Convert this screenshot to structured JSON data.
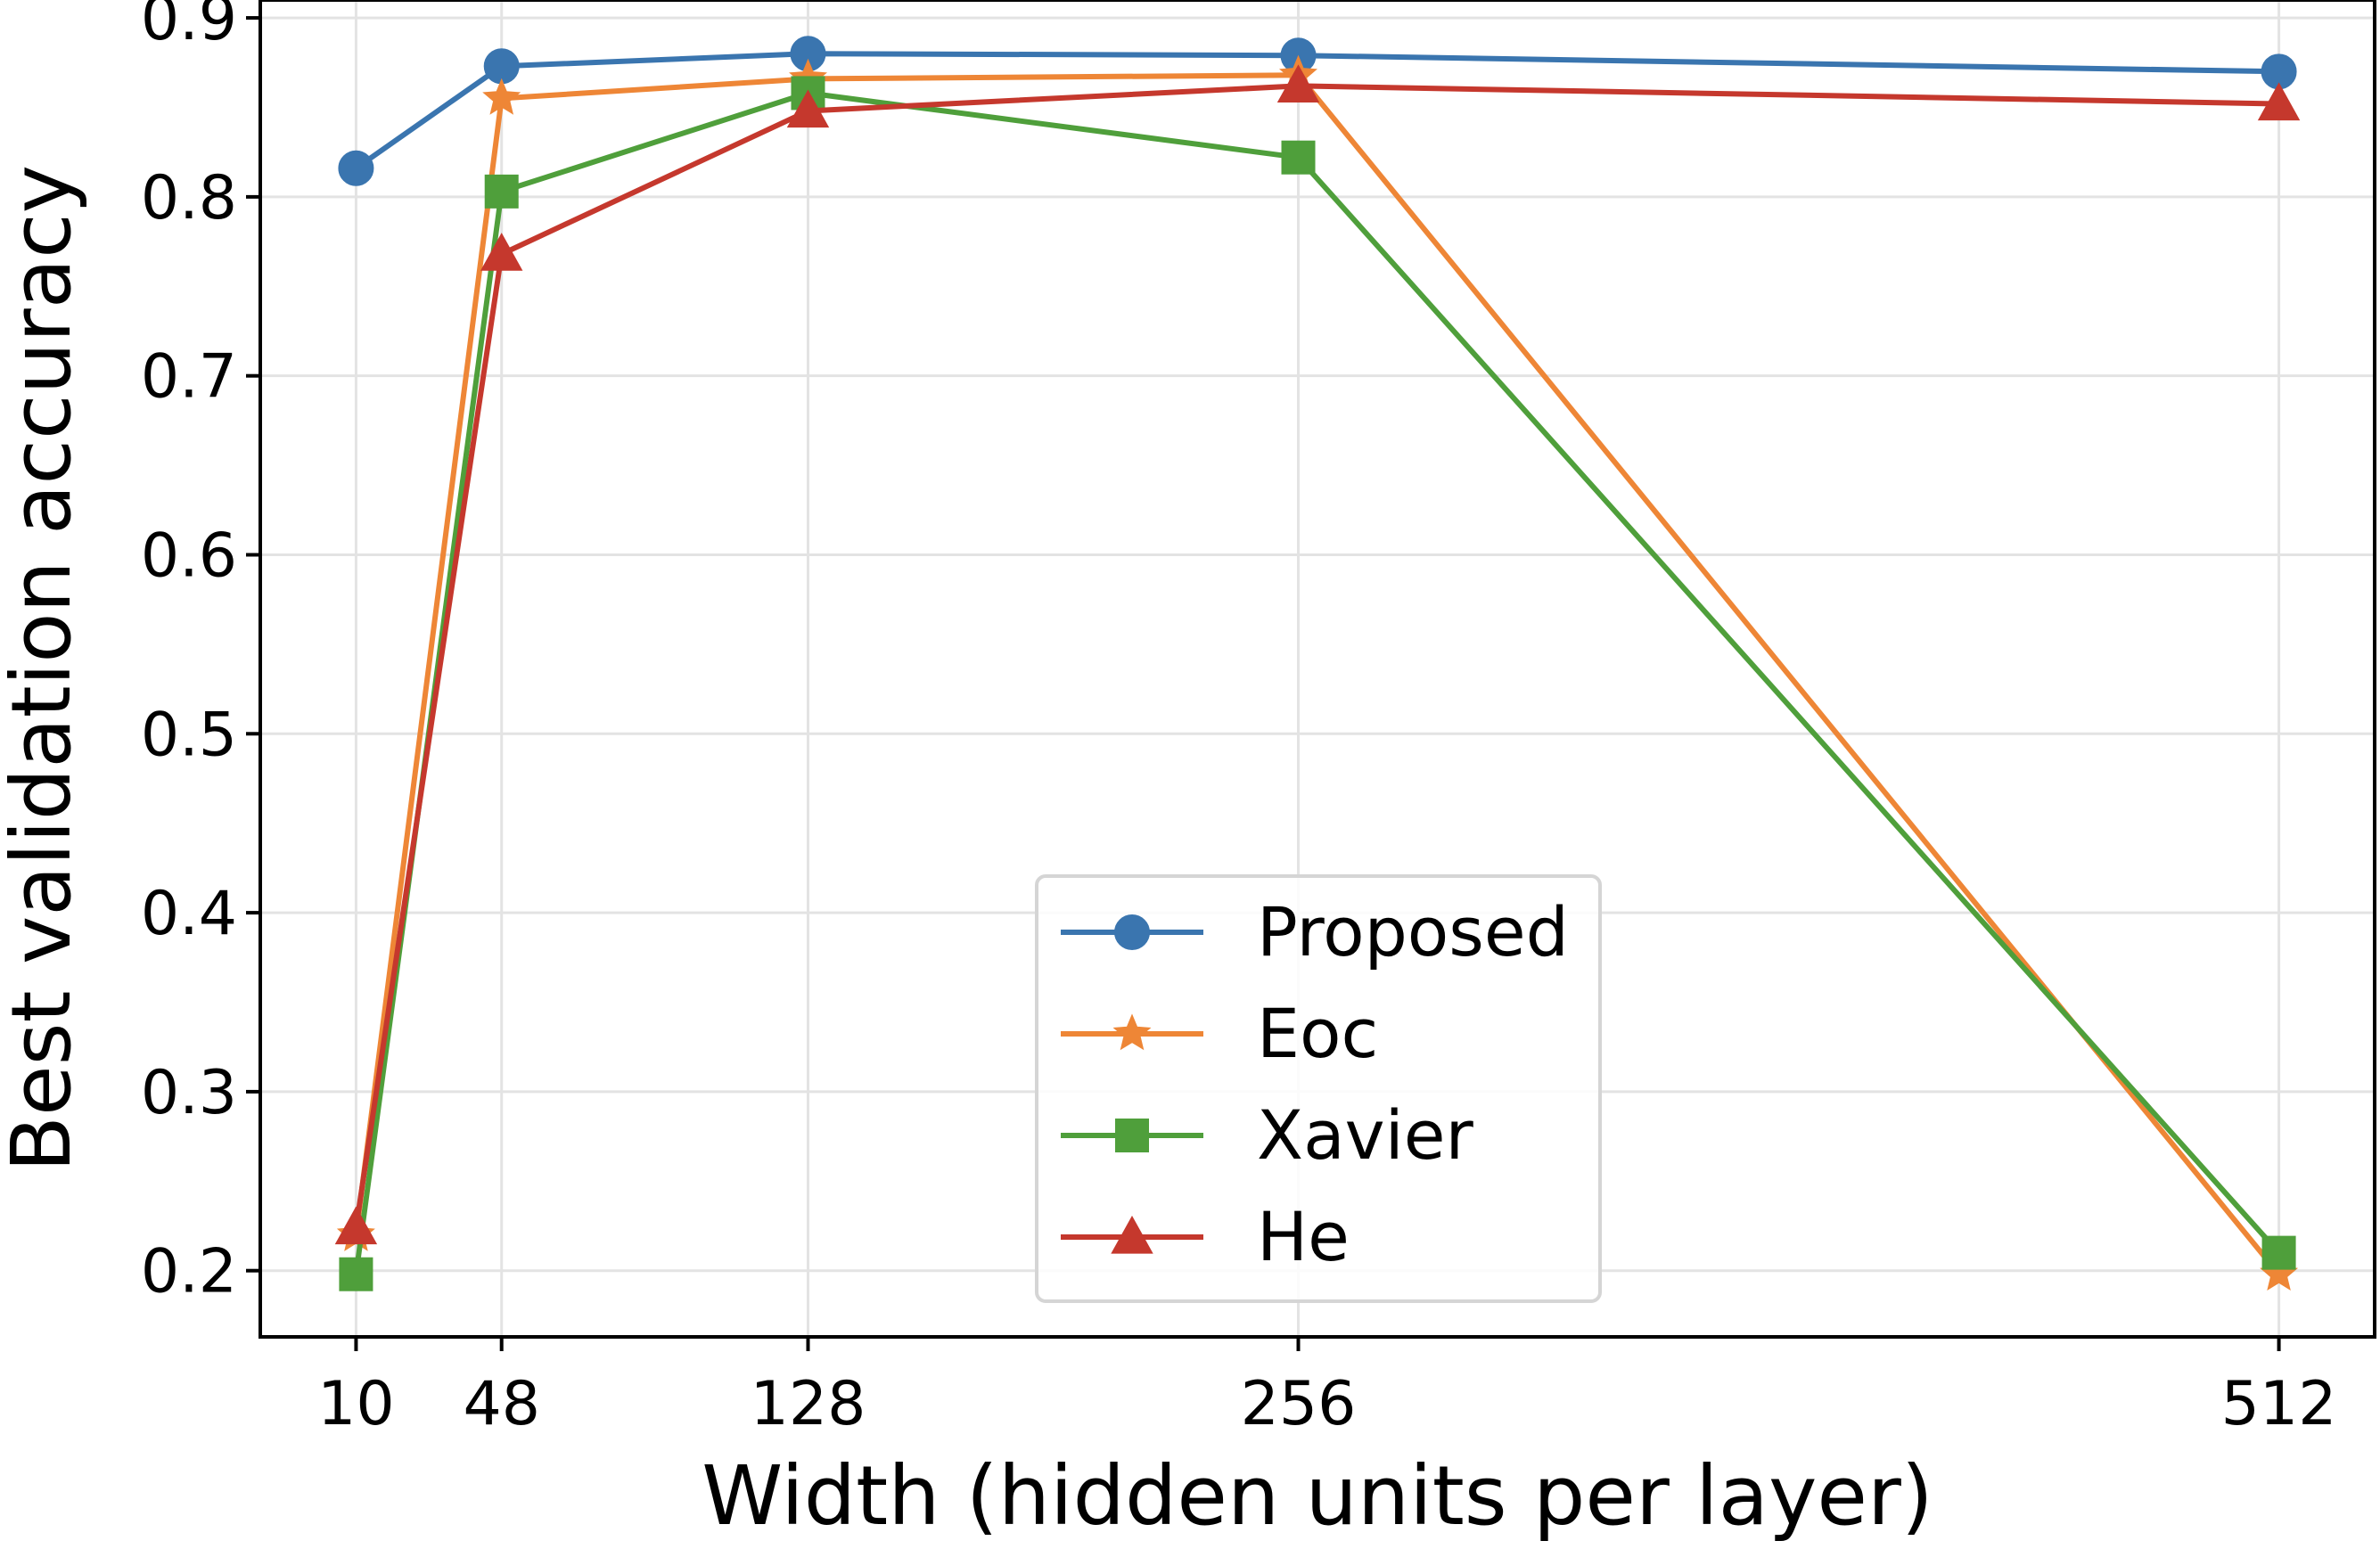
{
  "chart_data": {
    "type": "line",
    "title": "",
    "xlabel": "Width (hidden units per layer)",
    "ylabel": "Best validation accuracy",
    "x": [
      10,
      48,
      128,
      256,
      512
    ],
    "x_tick_labels": [
      "10",
      "48",
      "128",
      "256",
      "512"
    ],
    "xlim": [
      -15,
      537
    ],
    "ylim": [
      0.163,
      0.91
    ],
    "y_ticks": [
      0.2,
      0.3,
      0.4,
      0.5,
      0.6,
      0.7,
      0.8,
      0.9
    ],
    "y_tick_labels": [
      "0.2",
      "0.3",
      "0.4",
      "0.5",
      "0.6",
      "0.7",
      "0.8",
      "0.9"
    ],
    "grid": true,
    "legend_position": "lower-center",
    "series": [
      {
        "name": "Proposed",
        "color": "#3a75af",
        "marker": "circle",
        "values": [
          0.816,
          0.873,
          0.88,
          0.879,
          0.87
        ]
      },
      {
        "name": "Eoc",
        "color": "#ee8636",
        "marker": "star",
        "values": [
          0.22,
          0.855,
          0.866,
          0.868,
          0.198
        ]
      },
      {
        "name": "Xavier",
        "color": "#4f9f3b",
        "marker": "square",
        "values": [
          0.198,
          0.803,
          0.858,
          0.822,
          0.21
        ]
      },
      {
        "name": "He",
        "color": "#c5382d",
        "marker": "triangle",
        "values": [
          0.224,
          0.768,
          0.848,
          0.862,
          0.852
        ]
      }
    ]
  }
}
